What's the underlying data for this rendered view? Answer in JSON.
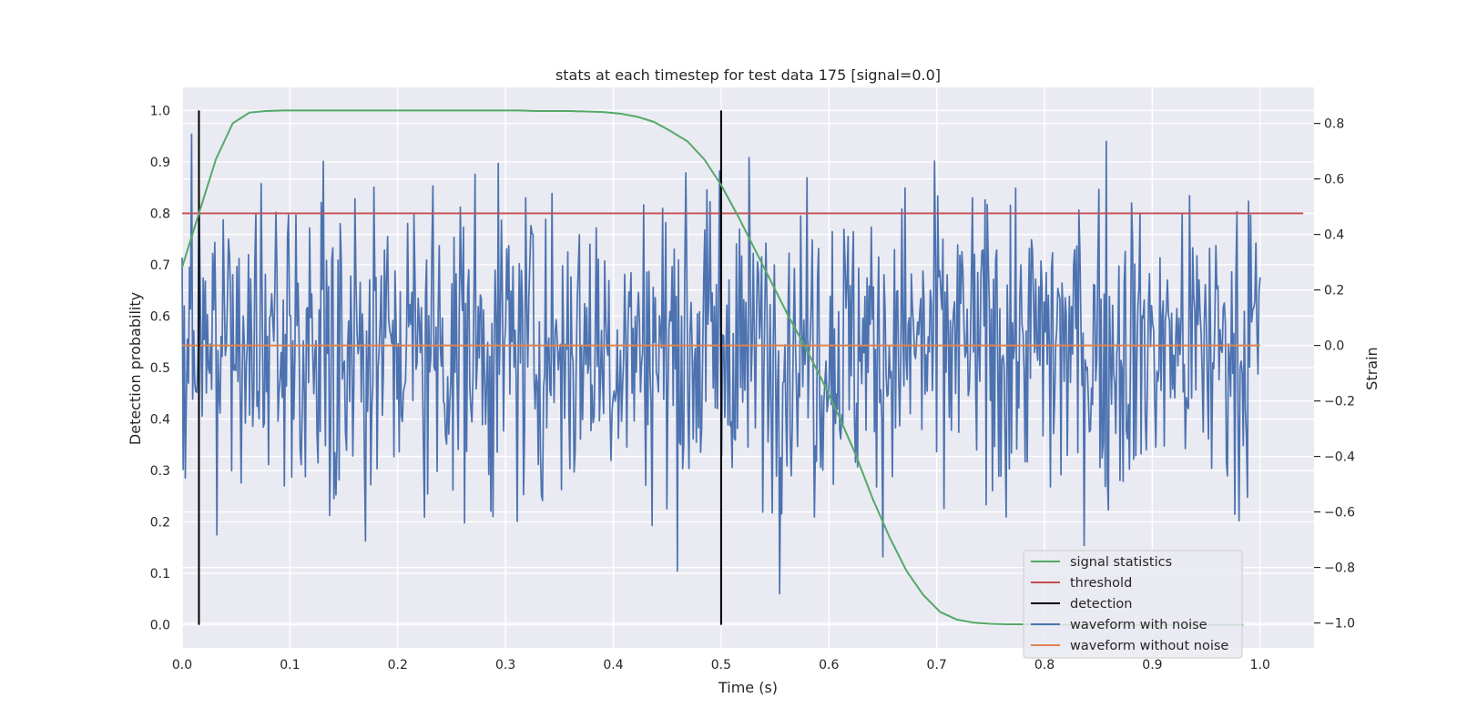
{
  "chart_data": {
    "type": "line",
    "title": "stats at each timestep for test data 175 [signal=0.0]",
    "xlabel": "Time (s)",
    "ylabel_left": "Detection probability",
    "ylabel_right": "Strain",
    "xlim": [
      0.0,
      1.05
    ],
    "ylim_left": [
      -0.045,
      1.045
    ],
    "ylim_right": [
      -1.09,
      0.93
    ],
    "x_ticks": [
      0.0,
      0.1,
      0.2,
      0.3,
      0.4,
      0.5,
      0.6,
      0.7,
      0.8,
      0.9,
      1.0
    ],
    "x_tick_labels": [
      "0.0",
      "0.1",
      "0.2",
      "0.3",
      "0.4",
      "0.5",
      "0.6",
      "0.7",
      "0.8",
      "0.9",
      "1.0"
    ],
    "y_left_ticks": [
      0.0,
      0.1,
      0.2,
      0.3,
      0.4,
      0.5,
      0.6,
      0.7,
      0.8,
      0.9,
      1.0
    ],
    "y_left_tick_labels": [
      "0.0",
      "0.1",
      "0.2",
      "0.3",
      "0.4",
      "0.5",
      "0.6",
      "0.7",
      "0.8",
      "0.9",
      "1.0"
    ],
    "y_right_ticks": [
      -1.0,
      -0.8,
      -0.6,
      -0.4,
      -0.2,
      0.0,
      0.2,
      0.4,
      0.6,
      0.8
    ],
    "y_right_tick_labels": [
      "−1.0",
      "−0.8",
      "−0.6",
      "−0.4",
      "−0.2",
      "0.0",
      "0.2",
      "0.4",
      "0.6",
      "0.8"
    ],
    "grid": true,
    "legend_position": "lower-right",
    "colors": {
      "background": "#eaeaf2",
      "grid": "#ffffff",
      "signal_statistics": "#55a868",
      "threshold": "#c44e52",
      "detection": "#000000",
      "waveform_with_noise": "#4c72b0",
      "waveform_without_noise": "#dd8452"
    },
    "series": [
      {
        "name": "signal statistics",
        "axis": "left",
        "x": [
          0.0,
          0.0156,
          0.0313,
          0.0469,
          0.0625,
          0.0781,
          0.0938,
          0.1094,
          0.125,
          0.1406,
          0.1563,
          0.1719,
          0.1875,
          0.2031,
          0.2188,
          0.2344,
          0.25,
          0.2656,
          0.2813,
          0.2969,
          0.3125,
          0.3281,
          0.3438,
          0.3594,
          0.375,
          0.3906,
          0.4063,
          0.4219,
          0.4375,
          0.4531,
          0.4688,
          0.4844,
          0.5,
          0.5156,
          0.5313,
          0.5469,
          0.5625,
          0.5781,
          0.5938,
          0.6094,
          0.625,
          0.6406,
          0.6563,
          0.6719,
          0.6875,
          0.7031,
          0.7188,
          0.7344,
          0.75,
          0.7656,
          0.7813,
          0.7969,
          0.8125,
          0.8281,
          0.8438,
          0.8594,
          0.875,
          0.8906,
          0.9063,
          0.9219,
          0.9375,
          0.9531,
          0.9688,
          0.9844
        ],
        "values": [
          0.695,
          0.8,
          0.905,
          0.975,
          0.996,
          0.999,
          1.0,
          1.0,
          1.0,
          1.0,
          1.0,
          1.0,
          1.0,
          1.0,
          1.0,
          1.0,
          1.0,
          1.0,
          1.0,
          1.0,
          1.0,
          0.999,
          0.999,
          0.999,
          0.998,
          0.997,
          0.994,
          0.988,
          0.978,
          0.96,
          0.94,
          0.905,
          0.855,
          0.795,
          0.73,
          0.665,
          0.6,
          0.54,
          0.475,
          0.405,
          0.33,
          0.245,
          0.17,
          0.105,
          0.058,
          0.025,
          0.01,
          0.004,
          0.002,
          0.001,
          0.001,
          0.0,
          0.0,
          0.0,
          0.0,
          0.0,
          0.0,
          0.0,
          0.0,
          0.0,
          0.0,
          0.0,
          0.0,
          0.0
        ]
      },
      {
        "name": "threshold",
        "axis": "left",
        "x": [
          0.0,
          1.04
        ],
        "values": [
          0.8,
          0.8
        ]
      },
      {
        "name": "detection",
        "axis": "left",
        "x_positions": [
          0.0156,
          0.5
        ],
        "ymin": 0.0,
        "ymax": 1.0
      },
      {
        "name": "waveform with noise",
        "axis": "right",
        "x_range": [
          0.0,
          1.0
        ],
        "generated": "pseudo-random gaussian noise, 1024 samples, std 0.28, clipped to [-1.0, 0.8]"
      },
      {
        "name": "waveform without noise",
        "axis": "right",
        "x": [
          0.0,
          1.0
        ],
        "values": [
          0.0,
          0.0
        ]
      }
    ],
    "legend": [
      "signal statistics",
      "threshold",
      "detection",
      "waveform with noise",
      "waveform without noise"
    ]
  }
}
